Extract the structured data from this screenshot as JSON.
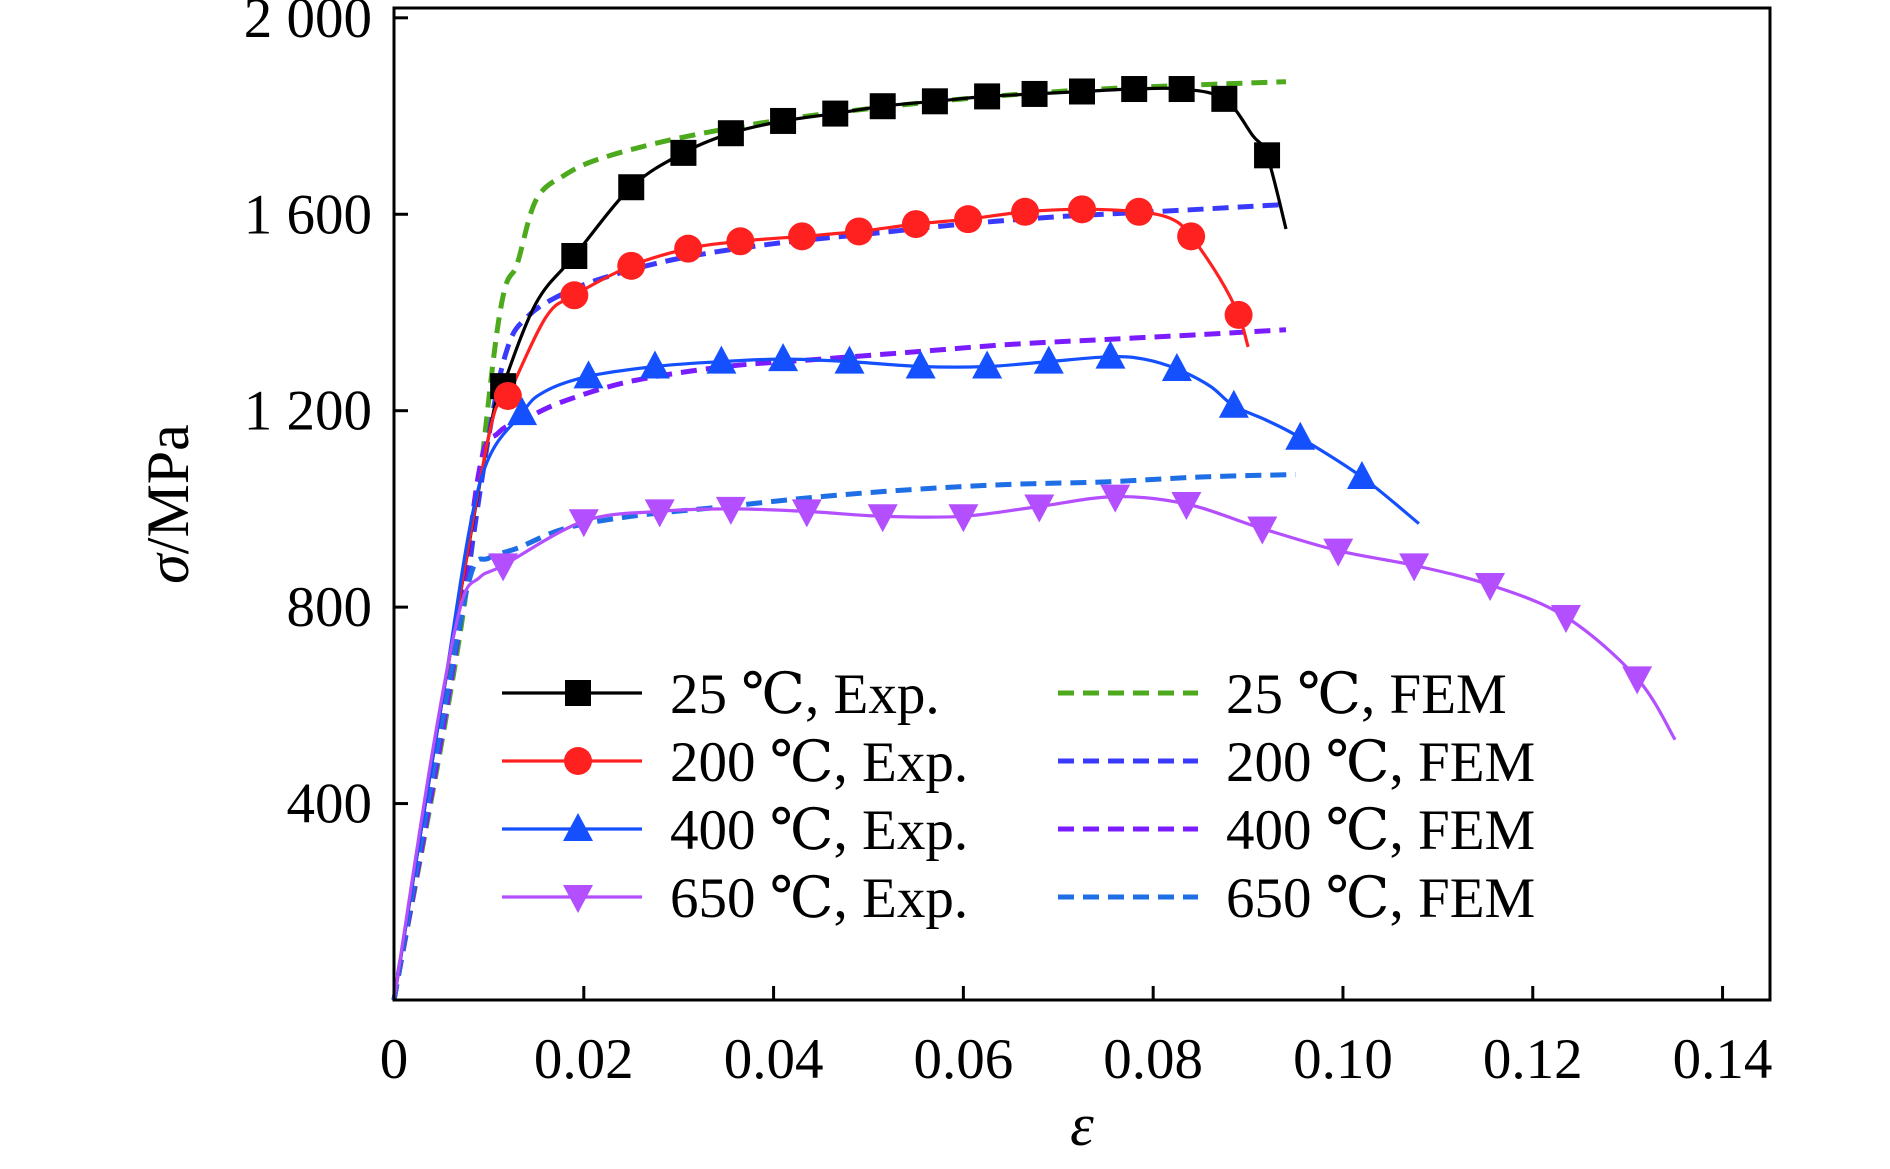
{
  "chart_data": {
    "type": "line",
    "title": "",
    "xlabel": "ε",
    "ylabel": "σ/MPa",
    "ylabel_parts": {
      "symbol": "σ",
      "unit": "/MPa"
    },
    "xlim": [
      0,
      0.145
    ],
    "ylim": [
      0,
      2020
    ],
    "x_ticks": [
      0,
      0.02,
      0.04,
      0.06,
      0.08,
      0.1,
      0.12,
      0.14
    ],
    "x_tick_labels": [
      "0",
      "0.02",
      "0.04",
      "0.06",
      "0.08",
      "0.10",
      "0.12",
      "0.14"
    ],
    "y_ticks": [
      400,
      800,
      1200,
      1600,
      2000
    ],
    "y_tick_labels": [
      "400",
      "800",
      "1 200",
      "1 600",
      "2 000"
    ],
    "grid": false,
    "legend_position": "lower-center",
    "series": [
      {
        "name": "25 ℃, Exp.",
        "color": "#000000",
        "style": "solid",
        "marker": "square",
        "x": [
          0.0,
          0.005,
          0.01,
          0.0115,
          0.015,
          0.019,
          0.025,
          0.0305,
          0.0355,
          0.041,
          0.0465,
          0.0515,
          0.057,
          0.0625,
          0.0675,
          0.0725,
          0.078,
          0.083,
          0.0875,
          0.0905,
          0.092,
          0.094
        ],
        "y": [
          0,
          600,
          1150,
          1250,
          1420,
          1515,
          1655,
          1725,
          1765,
          1790,
          1805,
          1820,
          1830,
          1840,
          1845,
          1850,
          1855,
          1855,
          1835,
          1760,
          1720,
          1570
        ],
        "markers_x": [
          0.0115,
          0.019,
          0.025,
          0.0305,
          0.0355,
          0.041,
          0.0465,
          0.0515,
          0.057,
          0.0625,
          0.0675,
          0.0725,
          0.078,
          0.083,
          0.0875,
          0.092
        ]
      },
      {
        "name": "200 ℃, Exp.",
        "color": "#ff2020",
        "style": "solid",
        "marker": "circle",
        "x": [
          0.0,
          0.005,
          0.01,
          0.012,
          0.016,
          0.019,
          0.025,
          0.031,
          0.0365,
          0.043,
          0.049,
          0.055,
          0.0605,
          0.0665,
          0.0725,
          0.0785,
          0.082,
          0.084,
          0.087,
          0.089,
          0.09
        ],
        "y": [
          0,
          600,
          1150,
          1230,
          1390,
          1435,
          1495,
          1530,
          1545,
          1555,
          1565,
          1580,
          1590,
          1605,
          1610,
          1605,
          1590,
          1555,
          1470,
          1395,
          1330
        ],
        "markers_x": [
          0.012,
          0.019,
          0.025,
          0.031,
          0.0365,
          0.043,
          0.049,
          0.055,
          0.0605,
          0.0665,
          0.0725,
          0.0785,
          0.084,
          0.089
        ]
      },
      {
        "name": "400 ℃, Exp.",
        "color": "#1550ff",
        "style": "solid",
        "marker": "triangle-up",
        "x": [
          0.0,
          0.005,
          0.009,
          0.0135,
          0.016,
          0.0205,
          0.0275,
          0.0345,
          0.041,
          0.048,
          0.0555,
          0.0625,
          0.069,
          0.0755,
          0.079,
          0.0825,
          0.086,
          0.0885,
          0.092,
          0.0955,
          0.102,
          0.108
        ],
        "y": [
          0,
          600,
          1050,
          1195,
          1240,
          1270,
          1290,
          1300,
          1305,
          1300,
          1290,
          1290,
          1300,
          1310,
          1305,
          1285,
          1250,
          1210,
          1180,
          1145,
          1065,
          970
        ],
        "markers_x": [
          0.0135,
          0.0205,
          0.0275,
          0.0345,
          0.041,
          0.048,
          0.0555,
          0.0625,
          0.069,
          0.0755,
          0.0825,
          0.0885,
          0.0955,
          0.102
        ]
      },
      {
        "name": "650 ℃, Exp.",
        "color": "#b44fff",
        "style": "solid",
        "marker": "triangle-down",
        "x": [
          0.0,
          0.004,
          0.007,
          0.009,
          0.0115,
          0.02,
          0.028,
          0.0355,
          0.0435,
          0.0515,
          0.06,
          0.068,
          0.076,
          0.0835,
          0.0915,
          0.0995,
          0.1075,
          0.1155,
          0.1235,
          0.131,
          0.135
        ],
        "y": [
          0,
          500,
          800,
          860,
          885,
          975,
          995,
          1000,
          995,
          985,
          985,
          1005,
          1025,
          1010,
          960,
          915,
          885,
          845,
          780,
          655,
          530
        ],
        "markers_x": [
          0.0115,
          0.02,
          0.028,
          0.0355,
          0.0435,
          0.0515,
          0.06,
          0.068,
          0.076,
          0.0835,
          0.0915,
          0.0995,
          0.1075,
          0.1155,
          0.1235,
          0.131
        ]
      },
      {
        "name": "25 ℃, FEM",
        "color": "#4caa1c",
        "style": "dashed",
        "marker": "none",
        "x": [
          0.0,
          0.007,
          0.011,
          0.013,
          0.015,
          0.018,
          0.022,
          0.03,
          0.04,
          0.05,
          0.06,
          0.07,
          0.08,
          0.094
        ],
        "y": [
          0,
          750,
          1380,
          1500,
          1630,
          1680,
          1715,
          1755,
          1790,
          1815,
          1835,
          1850,
          1860,
          1870
        ]
      },
      {
        "name": "200 ℃, FEM",
        "color": "#3a3aff",
        "style": "dashed",
        "marker": "none",
        "x": [
          0.0,
          0.006,
          0.01,
          0.012,
          0.014,
          0.017,
          0.022,
          0.03,
          0.04,
          0.05,
          0.06,
          0.07,
          0.08,
          0.094
        ],
        "y": [
          0,
          650,
          1150,
          1330,
          1390,
          1430,
          1470,
          1510,
          1540,
          1560,
          1580,
          1595,
          1605,
          1620
        ]
      },
      {
        "name": "400 ℃, FEM",
        "color": "#7a1cff",
        "style": "dashed",
        "marker": "none",
        "x": [
          0.0,
          0.006,
          0.009,
          0.011,
          0.014,
          0.018,
          0.025,
          0.035,
          0.045,
          0.055,
          0.065,
          0.075,
          0.085,
          0.094
        ],
        "y": [
          0,
          650,
          1080,
          1155,
          1185,
          1220,
          1260,
          1290,
          1305,
          1320,
          1335,
          1345,
          1355,
          1365
        ]
      },
      {
        "name": "650 ℃, FEM",
        "color": "#1e6ee6",
        "style": "dashed",
        "marker": "none",
        "x": [
          0.0,
          0.005,
          0.008,
          0.01,
          0.013,
          0.018,
          0.025,
          0.035,
          0.045,
          0.055,
          0.065,
          0.075,
          0.085,
          0.095
        ],
        "y": [
          0,
          560,
          860,
          900,
          920,
          960,
          985,
          1005,
          1025,
          1040,
          1050,
          1055,
          1065,
          1070
        ]
      }
    ]
  }
}
